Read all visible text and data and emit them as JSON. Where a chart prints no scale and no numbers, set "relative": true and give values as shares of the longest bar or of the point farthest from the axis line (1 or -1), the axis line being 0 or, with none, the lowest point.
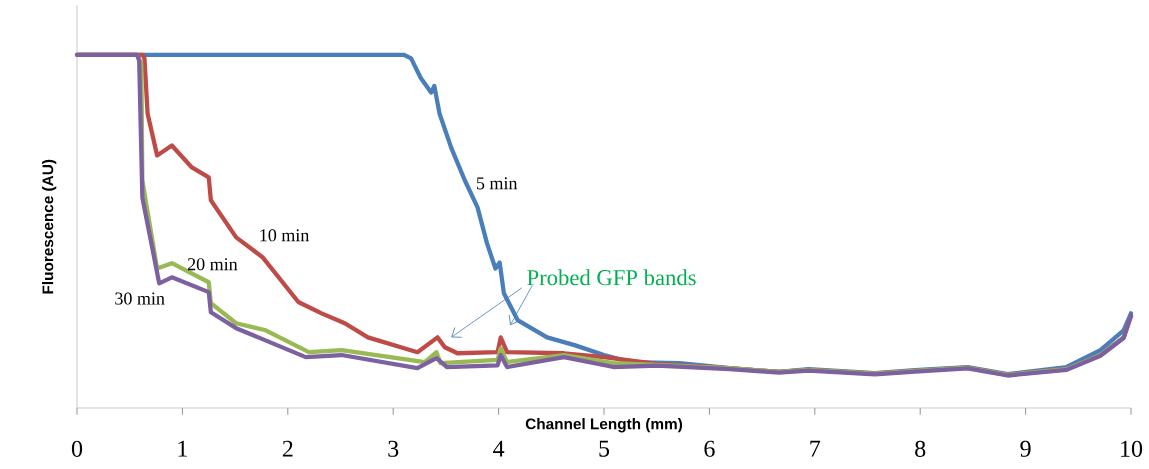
{
  "chart_data": {
    "type": "line",
    "relative": true,
    "xlabel": "Channel Length (mm)",
    "ylabel": "Fluorescence (AU)",
    "xlim": [
      0,
      10
    ],
    "xticks": [
      0,
      1,
      2,
      3,
      4,
      5,
      6,
      7,
      8,
      9,
      10
    ],
    "annotations": [
      "Probed GFP bands"
    ],
    "series": [
      {
        "name": "5 min",
        "color": "#4a7ebb",
        "x": [
          0,
          3.1,
          3.17,
          3.26,
          3.36,
          3.39,
          3.44,
          3.55,
          3.68,
          3.8,
          3.89,
          3.97,
          4.01,
          4.05,
          4.18,
          4.46,
          4.72,
          5.0,
          5.25,
          5.72,
          6.19,
          6.66,
          6.94,
          7.57,
          7.95,
          8.45,
          8.83,
          9.39,
          9.71,
          9.93,
          10
        ],
        "values": [
          1,
          1,
          0.99,
          0.935,
          0.893,
          0.912,
          0.833,
          0.737,
          0.644,
          0.568,
          0.466,
          0.395,
          0.412,
          0.325,
          0.249,
          0.2,
          0.178,
          0.15,
          0.13,
          0.127,
          0.113,
          0.102,
          0.11,
          0.099,
          0.107,
          0.116,
          0.096,
          0.116,
          0.164,
          0.22,
          0.268
        ]
      },
      {
        "name": "10 min",
        "color": "#be4b48",
        "x": [
          0,
          0.62,
          0.64,
          0.67,
          0.76,
          0.9,
          1.09,
          1.25,
          1.27,
          1.51,
          1.76,
          2.1,
          2.32,
          2.54,
          2.76,
          3.23,
          3.42,
          3.49,
          3.61,
          3.99,
          4.02,
          4.08,
          4.62,
          5.0,
          5.5,
          6.19,
          6.66,
          6.94,
          7.57,
          7.95,
          8.45,
          8.83,
          9.39,
          9.71,
          9.93,
          10
        ],
        "values": [
          1,
          1,
          0.99,
          0.833,
          0.715,
          0.743,
          0.681,
          0.653,
          0.588,
          0.483,
          0.427,
          0.3,
          0.268,
          0.24,
          0.2,
          0.158,
          0.2,
          0.172,
          0.155,
          0.158,
          0.2,
          0.158,
          0.155,
          0.144,
          0.125,
          0.113,
          0.102,
          0.108,
          0.097,
          0.105,
          0.114,
          0.094,
          0.11,
          0.15,
          0.2,
          0.26
        ]
      },
      {
        "name": "20 min",
        "color": "#98b954",
        "x": [
          0,
          0.57,
          0.61,
          0.62,
          0.76,
          0.9,
          1.25,
          1.27,
          1.51,
          1.79,
          2.2,
          2.51,
          3.3,
          3.41,
          3.45,
          3.99,
          4.02,
          4.08,
          4.62,
          5.09,
          5.5,
          6.19,
          6.66,
          6.94,
          7.57,
          7.95,
          8.45,
          8.83,
          9.39,
          9.71,
          9.93,
          10
        ],
        "values": [
          1,
          1,
          0.975,
          0.644,
          0.395,
          0.41,
          0.356,
          0.297,
          0.24,
          0.22,
          0.158,
          0.164,
          0.13,
          0.158,
          0.127,
          0.136,
          0.169,
          0.13,
          0.15,
          0.127,
          0.122,
          0.113,
          0.102,
          0.108,
          0.097,
          0.105,
          0.114,
          0.094,
          0.11,
          0.15,
          0.2,
          0.26
        ]
      },
      {
        "name": "30 min",
        "color": "#7d60a0",
        "x": [
          0,
          0.57,
          0.59,
          0.62,
          0.78,
          0.9,
          1.25,
          1.27,
          1.51,
          1.72,
          2.17,
          2.51,
          3.23,
          3.41,
          3.51,
          3.99,
          4.02,
          4.08,
          4.62,
          5.09,
          5.5,
          6.19,
          6.66,
          6.94,
          7.57,
          7.95,
          8.45,
          8.83,
          9.39,
          9.71,
          9.93,
          10
        ],
        "values": [
          1,
          1,
          0.983,
          0.596,
          0.353,
          0.37,
          0.328,
          0.271,
          0.226,
          0.2,
          0.144,
          0.15,
          0.113,
          0.141,
          0.116,
          0.121,
          0.15,
          0.116,
          0.144,
          0.116,
          0.12,
          0.11,
          0.1,
          0.106,
          0.095,
          0.103,
          0.112,
          0.092,
          0.108,
          0.148,
          0.198,
          0.262
        ]
      }
    ]
  }
}
